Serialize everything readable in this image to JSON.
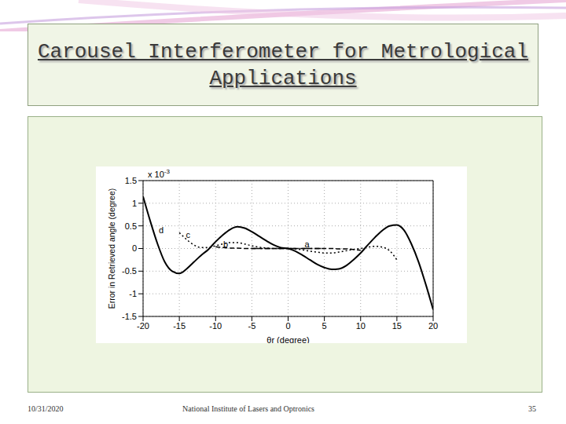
{
  "slide": {
    "title": "Carousel Interferometer for Metrological Applications",
    "date": "10/31/2020",
    "footer": "National Institute of Lasers and Optronics",
    "page": "35"
  },
  "chart_data": {
    "type": "line",
    "x_label": "θr (degree)",
    "y_label": "Error in Retrieved angle (degree)",
    "y_multiplier": {
      "base": "x 10",
      "exponent": "-3"
    },
    "xlim": [
      -20,
      20
    ],
    "xticks": [
      -20,
      -15,
      -10,
      -5,
      0,
      5,
      10,
      15,
      20
    ],
    "ylim": [
      -1.5,
      1.5
    ],
    "yticks": [
      -1.5,
      -1,
      -0.5,
      0,
      0.5,
      1,
      1.5
    ],
    "grid": true,
    "x": [
      -20,
      -19,
      -18,
      -17,
      -16,
      -15,
      -14,
      -13,
      -12,
      -11,
      -10,
      -9,
      -8,
      -7,
      -6,
      -5,
      -4,
      -3,
      -2,
      -1,
      0,
      1,
      2,
      3,
      4,
      5,
      6,
      7,
      8,
      9,
      10,
      11,
      12,
      13,
      14,
      15,
      16,
      17,
      18,
      19,
      20
    ],
    "series": [
      {
        "color": "#000000",
        "line_style": "solid",
        "values": [
          1.15,
          0.6,
          0.1,
          -0.3,
          -0.5,
          -0.55,
          -0.45,
          -0.3,
          -0.15,
          -0.02,
          0.15,
          0.3,
          0.42,
          0.48,
          0.45,
          0.37,
          0.27,
          0.17,
          0.08,
          0.02,
          0,
          -0.06,
          -0.15,
          -0.25,
          -0.35,
          -0.42,
          -0.46,
          -0.45,
          -0.38,
          -0.25,
          -0.1,
          0.08,
          0.25,
          0.4,
          0.5,
          0.52,
          0.4,
          0.1,
          -0.3,
          -0.8,
          -1.35
        ]
      },
      {
        "color": "#000000",
        "line_style": "dotted",
        "values": [
          null,
          null,
          null,
          null,
          null,
          0.35,
          0.2,
          0.08,
          0.02,
          0.02,
          0.06,
          0.1,
          0.13,
          0.13,
          0.1,
          0.06,
          0.03,
          0.01,
          0,
          0,
          0,
          -0.01,
          -0.03,
          -0.06,
          -0.08,
          -0.1,
          -0.1,
          -0.08,
          -0.05,
          -0.02,
          0,
          0.03,
          0.05,
          0.03,
          -0.05,
          -0.25,
          null,
          null,
          null,
          null,
          null
        ]
      },
      {
        "color": "#000000",
        "line_style": "dashed",
        "values": [
          null,
          null,
          null,
          null,
          null,
          null,
          null,
          null,
          null,
          null,
          0.04,
          0.02,
          0.01,
          0.01,
          0,
          0,
          0,
          0,
          0,
          0,
          0,
          0,
          0,
          0,
          0,
          0,
          0,
          -0.01,
          -0.01,
          -0.02,
          -0.04,
          null,
          null,
          null,
          null,
          null,
          null,
          null,
          null,
          null,
          null
        ]
      },
      {
        "color": "#000000",
        "line_style": "dashdot",
        "values": [
          null,
          null,
          null,
          null,
          null,
          null,
          null,
          null,
          null,
          null,
          null,
          null,
          null,
          null,
          null,
          0,
          0,
          0,
          0,
          0,
          0,
          0,
          0,
          0,
          0,
          0,
          null,
          null,
          null,
          null,
          null,
          null,
          null,
          null,
          null,
          null,
          null,
          null,
          null,
          null,
          null
        ]
      }
    ],
    "annotations": [
      {
        "text": "d",
        "x": -17.5,
        "y": 0.4
      },
      {
        "text": "c",
        "x": -13.8,
        "y": 0.3
      },
      {
        "text": "b",
        "x": -8.6,
        "y": 0.1
      },
      {
        "text": "a",
        "x": 2.6,
        "y": 0.1
      }
    ]
  }
}
